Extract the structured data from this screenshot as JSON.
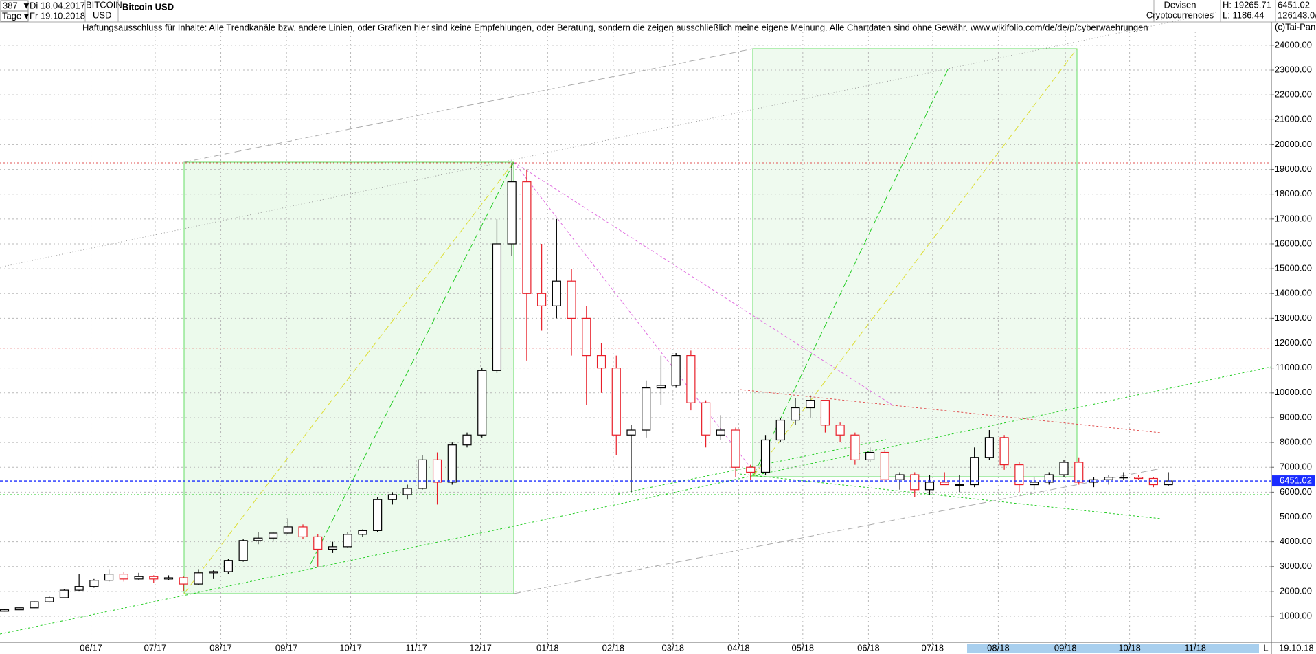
{
  "header": {
    "count": "387",
    "period": "Tage",
    "date_from": "Di 18.04.2017",
    "date_to": "Fr 19.10.2018",
    "symbol": "BITCOIN",
    "currency": "USD",
    "category": "Devisen",
    "subcategory": "Cryptocurrencies",
    "high": "H: 19265.71",
    "low": "L: 1186.44",
    "volume": "126143.0/"
  },
  "chart_data": {
    "type": "candlestick",
    "title": "Bitcoin USD",
    "subtitle": "Haftungsausschluss für Inhalte: Alle Trendkanäle bzw. andere Linien, oder Grafiken hier sind keine Empfehlungen, oder Beratung, sondern die zeigen ausschließlich meine eigene Meinung. Alle Chartdaten sind ohne Gewähr.  www.wikifolio.com/de/de/p/cyberwaehrungen",
    "copyright": "(c)Tai-Pan",
    "end_label": "19.10.18",
    "scale_label": "L",
    "x": [
      0.5,
      1.5,
      2.5,
      3.5,
      4.5,
      5.5,
      6.5,
      7.5,
      8.5,
      9.5,
      10.5,
      11.5,
      12.5,
      13.5,
      14.5,
      15.5,
      16.5,
      17.5,
      18.5,
      19.5,
      20.5,
      21.5,
      22.5,
      23.5,
      24.5,
      25.5,
      26.5,
      27.5,
      28.5,
      29.5,
      30.5,
      31.5,
      32.5,
      33.5,
      34.5,
      35.5,
      36.5,
      37.5,
      38.5,
      39.5,
      40.5,
      41.5,
      42.5,
      43.5,
      44.5,
      45.5,
      46.5,
      47.5,
      48.5,
      49.5,
      50.5,
      51.5,
      52.5,
      53.5,
      54.5,
      55.5,
      56.5,
      57.5,
      58.5,
      59.5,
      60.5,
      61.5,
      62.5,
      63.5,
      64.5,
      65.5,
      66.5,
      67.5,
      68.5,
      69.5,
      70.5,
      71.5,
      72.5,
      73.5,
      74.5,
      75.5,
      76.5,
      77.5,
      78.5
    ],
    "open": [
      1200,
      1260,
      1340,
      1580,
      1750,
      2050,
      2200,
      2450,
      2700,
      2500,
      2600,
      2500,
      2550,
      2300,
      2750,
      2800,
      3250,
      4050,
      4150,
      4350,
      4600,
      4200,
      3700,
      3800,
      4300,
      4450,
      5700,
      5900,
      6150,
      7300,
      6400,
      7900,
      8300,
      10900,
      16000,
      18500,
      14000,
      13500,
      14500,
      13000,
      11500,
      11000,
      8300,
      8500,
      10200,
      10300,
      11500,
      9600,
      8300,
      8500,
      7000,
      6800,
      8100,
      8900,
      9400,
      9700,
      8700,
      8300,
      7300,
      7600,
      6500,
      6700,
      6100,
      6400,
      6300,
      6300,
      7400,
      8200,
      7100,
      6300,
      6400,
      6700,
      7200,
      6400,
      6500,
      6600,
      6600,
      6550,
      6300
    ],
    "high": [
      1280,
      1350,
      1600,
      1800,
      2100,
      2700,
      2500,
      2900,
      2800,
      2750,
      2650,
      2650,
      2600,
      2900,
      2850,
      3300,
      4100,
      4400,
      4400,
      4950,
      4700,
      4300,
      4000,
      4400,
      4500,
      5800,
      6000,
      6300,
      7500,
      7600,
      8000,
      8400,
      11000,
      17000,
      19265.71,
      19000,
      16000,
      17000,
      15000,
      13500,
      12000,
      11500,
      8700,
      10500,
      11500,
      11600,
      11700,
      9700,
      9100,
      8600,
      7100,
      8300,
      9000,
      9800,
      9900,
      9600,
      8800,
      8400,
      7800,
      7700,
      6800,
      6800,
      6700,
      6800,
      6700,
      7800,
      8500,
      8300,
      7200,
      6600,
      6800,
      7300,
      7400,
      6600,
      6700,
      6800,
      6700,
      6600,
      6800
    ],
    "low": [
      1186.44,
      1250,
      1330,
      1550,
      1740,
      2000,
      2150,
      2400,
      2400,
      2450,
      2350,
      2450,
      2000,
      2250,
      2500,
      2700,
      3200,
      3900,
      4000,
      4300,
      4100,
      3000,
      3550,
      3750,
      4200,
      4400,
      5500,
      5700,
      6100,
      5500,
      6300,
      7800,
      8200,
      10800,
      15500,
      11300,
      12500,
      13000,
      11500,
      9500,
      10000,
      7500,
      6000,
      8200,
      9500,
      10200,
      9300,
      7800,
      8100,
      6600,
      6500,
      6700,
      8000,
      8700,
      9000,
      8400,
      8000,
      7100,
      7200,
      6400,
      6100,
      5800,
      5900,
      6300,
      6000,
      6200,
      7300,
      6900,
      6000,
      6100,
      6300,
      6600,
      6300,
      6200,
      6300,
      6500,
      6500,
      6200,
      6250
    ],
    "close": [
      1260,
      1340,
      1580,
      1750,
      2050,
      2200,
      2450,
      2700,
      2500,
      2600,
      2500,
      2550,
      2300,
      2750,
      2800,
      3250,
      4050,
      4150,
      4350,
      4600,
      4200,
      3700,
      3800,
      4300,
      4450,
      5700,
      5900,
      6150,
      7300,
      6400,
      7900,
      8300,
      10900,
      16000,
      18500,
      14000,
      13500,
      14500,
      13000,
      11500,
      11000,
      8300,
      8500,
      10200,
      10300,
      11500,
      9600,
      8300,
      8500,
      7000,
      6800,
      8100,
      8900,
      9400,
      9700,
      8700,
      8300,
      7300,
      7600,
      6500,
      6700,
      6100,
      6400,
      6300,
      6300,
      7400,
      8200,
      7100,
      6300,
      6400,
      6700,
      7200,
      6400,
      6500,
      6600,
      6600,
      6550,
      6300,
      6451.02
    ],
    "up_color": "#000000",
    "down_color": "#e8202a",
    "last_price": 6451.02,
    "last_color": "#1a2cff",
    "reference_lines": [
      {
        "value": 19265.71,
        "color": "#e05050"
      },
      {
        "value": 11800,
        "color": "#e05050"
      },
      {
        "value": 5900,
        "color": "#22cc22"
      }
    ],
    "xlim": [
      0.2,
      85.4
    ],
    "xticks": [
      {
        "value": 6.3,
        "label": "06/17"
      },
      {
        "value": 10.6,
        "label": "07/17"
      },
      {
        "value": 15.0,
        "label": "08/17"
      },
      {
        "value": 19.4,
        "label": "09/17"
      },
      {
        "value": 23.7,
        "label": "10/17"
      },
      {
        "value": 28.1,
        "label": "11/17"
      },
      {
        "value": 32.4,
        "label": "12/17"
      },
      {
        "value": 36.9,
        "label": "01/18"
      },
      {
        "value": 41.3,
        "label": "02/18"
      },
      {
        "value": 45.3,
        "label": "03/18"
      },
      {
        "value": 49.7,
        "label": "04/18"
      },
      {
        "value": 54.0,
        "label": "05/18"
      },
      {
        "value": 58.4,
        "label": "06/18"
      },
      {
        "value": 62.7,
        "label": "07/18"
      },
      {
        "value": 67.1,
        "label": "08/18"
      },
      {
        "value": 71.6,
        "label": "09/18"
      },
      {
        "value": 75.9,
        "label": "10/18"
      },
      {
        "value": 80.3,
        "label": "11/18"
      }
    ],
    "ylim": [
      -50,
      24550
    ],
    "yticks": [
      {
        "value": 1000,
        "label": "1000.00"
      },
      {
        "value": 2000,
        "label": "2000.00"
      },
      {
        "value": 3000,
        "label": "3000.00"
      },
      {
        "value": 4000,
        "label": "4000.00"
      },
      {
        "value": 5000,
        "label": "5000.00"
      },
      {
        "value": 6000,
        "label": "6000.00"
      },
      {
        "value": 7000,
        "label": "7000.00"
      },
      {
        "value": 8000,
        "label": "8000.00"
      },
      {
        "value": 9000,
        "label": "9000.00"
      },
      {
        "value": 10000,
        "label": "10000.00"
      },
      {
        "value": 11000,
        "label": "11000.00"
      },
      {
        "value": 12000,
        "label": "12000.00"
      },
      {
        "value": 13000,
        "label": "13000.00"
      },
      {
        "value": 14000,
        "label": "14000.00"
      },
      {
        "value": 15000,
        "label": "15000.00"
      },
      {
        "value": 16000,
        "label": "16000.00"
      },
      {
        "value": 17000,
        "label": "17000.00"
      },
      {
        "value": 18000,
        "label": "18000.00"
      },
      {
        "value": 19000,
        "label": "19000.00"
      },
      {
        "value": 20000,
        "label": "20000.00"
      },
      {
        "value": 21000,
        "label": "21000.00"
      },
      {
        "value": 22000,
        "label": "22000.00"
      },
      {
        "value": 23000,
        "label": "23000.00"
      },
      {
        "value": 24000,
        "label": "24000.00"
      }
    ],
    "grid": true
  }
}
